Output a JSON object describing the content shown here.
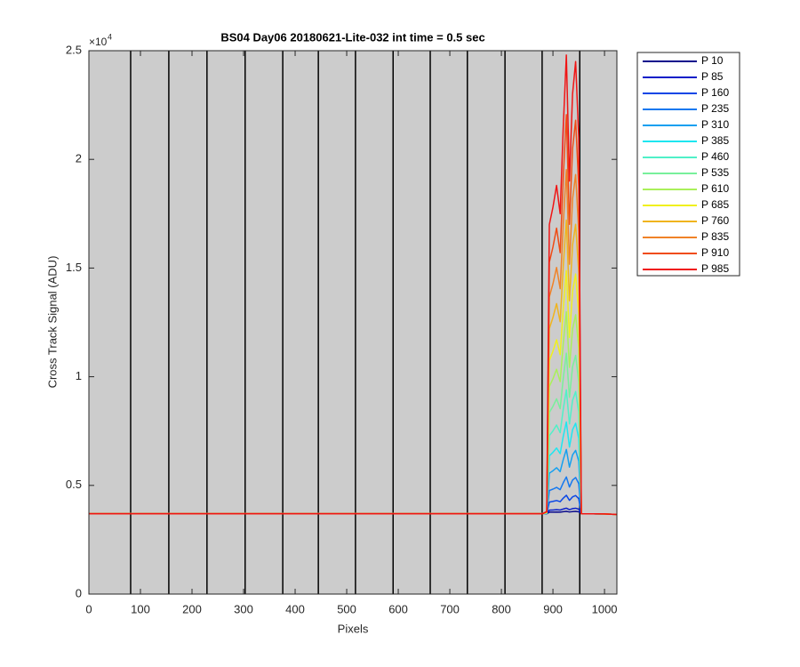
{
  "chart_data": {
    "type": "line",
    "title": "BS04 Day06 20180621-Lite-032 int time = 0.5 sec",
    "x_label": "Pixels",
    "y_label": "Cross Track Signal (ADU)",
    "y_multiplier": {
      "base": "×10",
      "exponent": "4"
    },
    "xlim": [
      0,
      1024
    ],
    "ylim": [
      0,
      25000
    ],
    "xticks": [
      0,
      100,
      200,
      300,
      400,
      500,
      600,
      700,
      800,
      900,
      1000
    ],
    "yticks": [
      0,
      {
        "value": 5000,
        "label": "0.5"
      },
      {
        "value": 10000,
        "label": "1"
      },
      {
        "value": 15000,
        "label": "1.5"
      },
      {
        "value": 20000,
        "label": "2"
      },
      {
        "value": 25000,
        "label": "2.5"
      }
    ],
    "grid": false,
    "legend": "outside-top-right",
    "background": "#cccccc",
    "vertical_lines": {
      "color": "#000000",
      "x": [
        81,
        155,
        229,
        303,
        376,
        445,
        517,
        590,
        662,
        734,
        807,
        879,
        952
      ]
    },
    "x": [
      0,
      100,
      200,
      300,
      400,
      500,
      600,
      700,
      800,
      880,
      888,
      893,
      900,
      907,
      914,
      920,
      926,
      932,
      938,
      944,
      950,
      955,
      1000,
      1024
    ],
    "series": [
      {
        "name": "P 10",
        "color": "#0a0a8c",
        "values": [
          3700,
          3700,
          3700,
          3700,
          3700,
          3700,
          3700,
          3700,
          3700,
          3700,
          3701,
          3767,
          3771,
          3776,
          3769,
          3789,
          3806,
          3777,
          3797,
          3804,
          3787,
          3700,
          3690,
          3660
        ]
      },
      {
        "name": "P 85",
        "color": "#0a1ec8",
        "values": [
          3700,
          3700,
          3700,
          3700,
          3700,
          3700,
          3700,
          3700,
          3700,
          3700,
          3701,
          3860,
          3869,
          3881,
          3866,
          3914,
          3953,
          3884,
          3932,
          3950,
          3908,
          3700,
          3690,
          3660
        ]
      },
      {
        "name": "P 160",
        "color": "#0a46e6",
        "values": [
          3700,
          3700,
          3700,
          3700,
          3700,
          3700,
          3700,
          3700,
          3700,
          3700,
          3704,
          4232,
          4264,
          4304,
          4252,
          4412,
          4544,
          4312,
          4472,
          4532,
          4392,
          3700,
          3690,
          3660
        ]
      },
      {
        "name": "P 235",
        "color": "#1478f0",
        "values": [
          3700,
          3700,
          3700,
          3700,
          3700,
          3700,
          3700,
          3700,
          3700,
          3700,
          3708,
          4764,
          4828,
          4908,
          4804,
          5124,
          5388,
          4924,
          5244,
          5364,
          5084,
          3700,
          3690,
          3660
        ]
      },
      {
        "name": "P 310",
        "color": "#14a0f0",
        "values": [
          3700,
          3700,
          3700,
          3700,
          3700,
          3700,
          3700,
          3700,
          3700,
          3700,
          3714,
          5562,
          5674,
          5814,
          5632,
          6192,
          6654,
          5842,
          6402,
          6612,
          6122,
          3700,
          3690,
          3660
        ]
      },
      {
        "name": "P 385",
        "color": "#1ee6f0",
        "values": [
          3700,
          3700,
          3700,
          3700,
          3700,
          3700,
          3700,
          3700,
          3700,
          3700,
          3720,
          6360,
          6520,
          6720,
          6460,
          7260,
          7920,
          6760,
          7560,
          7860,
          7160,
          3700,
          3690,
          3660
        ]
      },
      {
        "name": "P 460",
        "color": "#50f0c8",
        "values": [
          3700,
          3700,
          3700,
          3700,
          3700,
          3700,
          3700,
          3700,
          3700,
          3700,
          3727,
          7291,
          7507,
          7777,
          7426,
          8506,
          9397,
          7831,
          8911,
          9316,
          8371,
          3700,
          3690,
          3660
        ]
      },
      {
        "name": "P 535",
        "color": "#78f09b",
        "values": [
          3700,
          3700,
          3700,
          3700,
          3700,
          3700,
          3700,
          3700,
          3700,
          3700,
          3735,
          8355,
          8635,
          8985,
          8530,
          9930,
          11085,
          9055,
          10455,
          10980,
          9755,
          3700,
          3690,
          3660
        ]
      },
      {
        "name": "P 610",
        "color": "#aaf05a",
        "values": [
          3700,
          3700,
          3700,
          3700,
          3700,
          3700,
          3700,
          3700,
          3700,
          3700,
          3744,
          9552,
          9904,
          10344,
          9772,
          11532,
          12984,
          10432,
          12192,
          12852,
          11312,
          3700,
          3690,
          3660
        ]
      },
      {
        "name": "P 685",
        "color": "#f0f01e",
        "values": [
          3700,
          3700,
          3700,
          3700,
          3700,
          3700,
          3700,
          3700,
          3700,
          3700,
          3753,
          10749,
          11173,
          11703,
          11014,
          13134,
          14883,
          11809,
          13929,
          14724,
          12869,
          3700,
          3690,
          3660
        ]
      },
      {
        "name": "P 760",
        "color": "#f0b41e",
        "values": [
          3700,
          3700,
          3700,
          3700,
          3700,
          3700,
          3700,
          3700,
          3700,
          3700,
          3764,
          12212,
          12724,
          13364,
          12532,
          15092,
          17204,
          13492,
          16052,
          17012,
          14772,
          3700,
          3690,
          3660
        ]
      },
      {
        "name": "P 835",
        "color": "#f08228",
        "values": [
          3700,
          3700,
          3700,
          3700,
          3700,
          3700,
          3700,
          3700,
          3700,
          3700,
          3775,
          13675,
          14275,
          15025,
          14050,
          17050,
          19525,
          15175,
          18175,
          19300,
          16675,
          3700,
          3690,
          3660
        ]
      },
      {
        "name": "P 910",
        "color": "#f04b14",
        "values": [
          3700,
          3700,
          3700,
          3700,
          3700,
          3700,
          3700,
          3700,
          3700,
          3700,
          3787,
          15271,
          15967,
          16837,
          15706,
          19186,
          22057,
          17011,
          20491,
          21796,
          18751,
          3700,
          3690,
          3660
        ]
      },
      {
        "name": "P 985",
        "color": "#f01414",
        "values": [
          3700,
          3700,
          3700,
          3700,
          3700,
          3700,
          3700,
          3700,
          3700,
          3700,
          3800,
          17000,
          17800,
          18800,
          17500,
          21500,
          24800,
          19000,
          23000,
          24500,
          21000,
          3700,
          3690,
          3660
        ]
      }
    ]
  }
}
